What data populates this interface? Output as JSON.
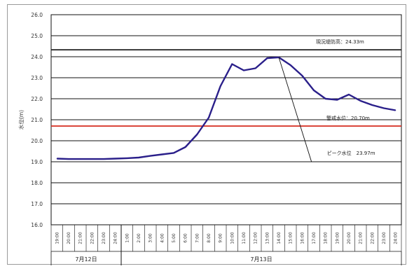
{
  "chart_data": {
    "type": "line",
    "ylabel": "水位(m)",
    "ylim": [
      16.0,
      26.0
    ],
    "yticks": [
      "16.0",
      "17.0",
      "18.0",
      "19.0",
      "20.0",
      "21.0",
      "22.0",
      "23.0",
      "24.0",
      "25.0",
      "26.0"
    ],
    "x": [
      "19:00",
      "20:00",
      "21:00",
      "22:00",
      "23:00",
      "24:00",
      "1:00",
      "2:00",
      "3:00",
      "4:00",
      "5:00",
      "6:00",
      "7:00",
      "8:00",
      "9:00",
      "10:00",
      "11:00",
      "12:00",
      "13:00",
      "14:00",
      "15:00",
      "16:00",
      "17:00",
      "18:00",
      "19:00",
      "20:00",
      "21:00",
      "22:00",
      "23:00",
      "24:00"
    ],
    "date_groups": [
      {
        "label": "7月12日",
        "span": [
          0,
          5
        ]
      },
      {
        "label": "7月13日",
        "span": [
          6,
          29
        ]
      }
    ],
    "series": [
      {
        "values": [
          19.15,
          19.13,
          19.13,
          19.13,
          19.13,
          19.15,
          19.17,
          19.2,
          19.28,
          19.35,
          19.42,
          19.7,
          20.3,
          21.1,
          22.6,
          23.65,
          23.35,
          23.45,
          23.93,
          23.97,
          23.6,
          23.1,
          22.4,
          22.0,
          21.95,
          22.2,
          21.9,
          21.7,
          21.55,
          21.45
        ],
        "color": "#2a1f8a"
      }
    ],
    "reference_lines": [
      {
        "label": "現況堤防高：24.33m",
        "value": 24.33,
        "color": "#222222"
      },
      {
        "label": "警戒水位：20.70m",
        "value": 20.7,
        "color": "#d62b1f"
      }
    ],
    "annotation": {
      "label": "ピーク水位　23.97m",
      "x_index": 19,
      "value": 23.97
    },
    "grid": true
  }
}
